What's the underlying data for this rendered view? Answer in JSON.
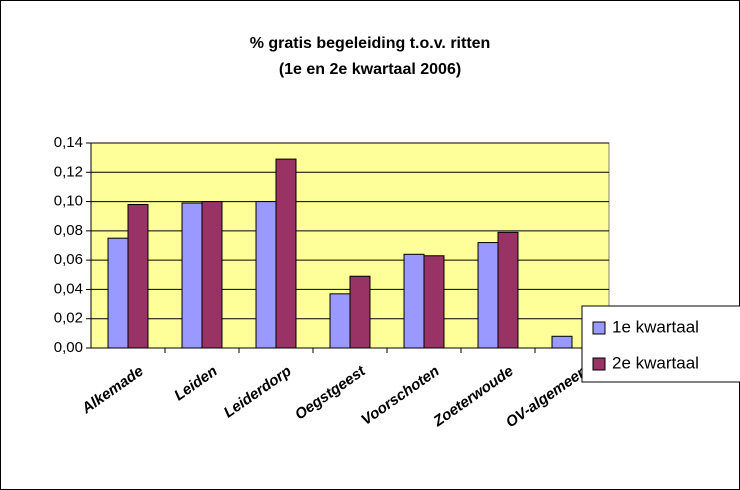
{
  "chart_data": {
    "type": "bar",
    "title": "% gratis begeleiding t.o.v. ritten",
    "subtitle": "(1e en 2e kwartaal 2006)",
    "categories": [
      "Alkemade",
      "Leiden",
      "Leiderdorp",
      "Oegstgeest",
      "Voorschoten",
      "Zoeterwoude",
      "OV-algemeen"
    ],
    "series": [
      {
        "name": "1e kwartaal",
        "color": "#9999ff",
        "values": [
          0.075,
          0.099,
          0.1,
          0.037,
          0.064,
          0.072,
          0.008
        ]
      },
      {
        "name": "2e kwartaal",
        "color": "#993366",
        "values": [
          0.098,
          0.1,
          0.129,
          0.049,
          0.063,
          0.079,
          null
        ]
      }
    ],
    "ylim": [
      0,
      0.14
    ],
    "yticks": [
      {
        "value": 0,
        "label": "0,00"
      },
      {
        "value": 0.02,
        "label": "0,02"
      },
      {
        "value": 0.04,
        "label": "0,04"
      },
      {
        "value": 0.06,
        "label": "0,06"
      },
      {
        "value": 0.08,
        "label": "0,08"
      },
      {
        "value": 0.1,
        "label": "0,10"
      },
      {
        "value": 0.12,
        "label": "0,12"
      },
      {
        "value": 0.14,
        "label": "0,14"
      }
    ],
    "grid": true,
    "legend": "right",
    "plot_background": "#ffff99"
  }
}
